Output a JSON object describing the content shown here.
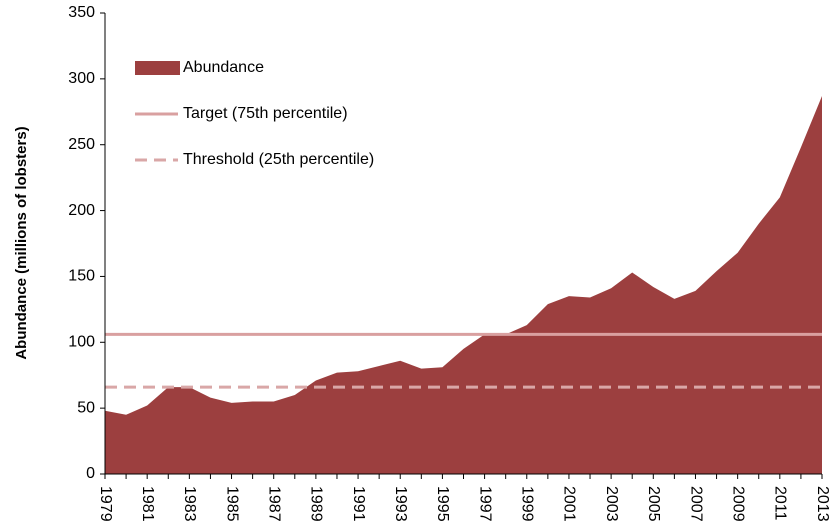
{
  "chart_data": {
    "type": "area",
    "y_label": "Abundance (millions of lobsters)",
    "categories": [
      1979,
      null,
      1981,
      null,
      1983,
      null,
      1985,
      null,
      1987,
      null,
      1989,
      null,
      1991,
      null,
      1993,
      null,
      1995,
      null,
      1997,
      null,
      1999,
      null,
      2001,
      null,
      2003,
      null,
      2005,
      null,
      2007,
      null,
      2009,
      null,
      2011,
      null,
      2013
    ],
    "series": [
      {
        "name": "Abundance",
        "color": "#9c3f3f",
        "values": [
          48,
          45,
          52,
          66,
          66,
          58,
          54,
          55,
          55,
          60,
          71,
          77,
          78,
          82,
          86,
          80,
          81,
          95,
          106,
          106,
          113,
          129,
          135,
          134,
          141,
          153,
          142,
          133,
          139,
          154,
          168,
          190,
          210,
          248,
          287
        ]
      }
    ],
    "reference_lines": [
      {
        "name": "Target (75th percentile)",
        "value": 106,
        "color": "#d9a0a0",
        "dashed": false
      },
      {
        "name": "Threshold (25th percentile)",
        "value": 66,
        "color": "#d9a7a7",
        "dashed": true
      }
    ],
    "ylim": [
      0,
      350
    ],
    "yticks": [
      0,
      50,
      100,
      150,
      200,
      250,
      300,
      350
    ],
    "legend": "upper left"
  }
}
